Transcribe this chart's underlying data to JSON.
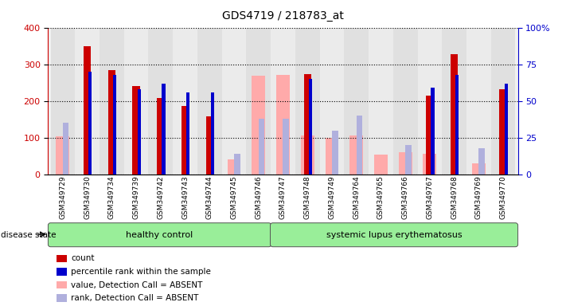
{
  "title": "GDS4719 / 218783_at",
  "samples": [
    "GSM349729",
    "GSM349730",
    "GSM349734",
    "GSM349739",
    "GSM349742",
    "GSM349743",
    "GSM349744",
    "GSM349745",
    "GSM349746",
    "GSM349747",
    "GSM349748",
    "GSM349749",
    "GSM349764",
    "GSM349765",
    "GSM349766",
    "GSM349767",
    "GSM349768",
    "GSM349769",
    "GSM349770"
  ],
  "count": [
    0,
    350,
    285,
    240,
    207,
    187,
    158,
    0,
    0,
    0,
    273,
    0,
    0,
    0,
    0,
    215,
    327,
    0,
    232
  ],
  "percentile_pct": [
    0,
    70,
    68,
    58,
    62,
    56,
    56,
    0,
    0,
    0,
    65,
    0,
    0,
    0,
    0,
    59,
    68,
    0,
    62
  ],
  "value_absent": [
    103,
    0,
    0,
    0,
    0,
    0,
    0,
    40,
    268,
    270,
    107,
    100,
    105,
    55,
    60,
    57,
    0,
    30,
    0
  ],
  "rank_absent_pct": [
    35,
    0,
    0,
    0,
    0,
    0,
    0,
    14,
    38,
    38,
    0,
    30,
    40,
    0,
    20,
    0,
    0,
    18,
    0
  ],
  "healthy_count": 9,
  "bar_color_count": "#cc0000",
  "bar_color_percentile": "#0000cc",
  "bar_color_value_absent": "#ffaaaa",
  "bar_color_rank_absent": "#b0b0dd",
  "ylim_left": [
    0,
    400
  ],
  "ylim_right": [
    0,
    100
  ],
  "disease_state_label": "disease state",
  "healthy_label": "healthy control",
  "sle_label": "systemic lupus erythematosus",
  "legend_items": [
    "count",
    "percentile rank within the sample",
    "value, Detection Call = ABSENT",
    "rank, Detection Call = ABSENT"
  ],
  "background_color": "#ffffff",
  "left_axis_color": "#cc0000",
  "right_axis_color": "#0000cc",
  "col_bg_even": "#e8e8e8",
  "col_bg_odd": "#d8d8d8"
}
